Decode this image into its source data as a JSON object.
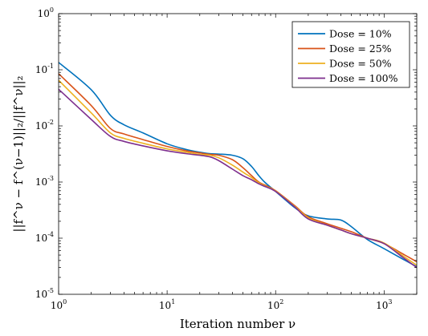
{
  "chart_data": {
    "type": "line",
    "xscale": "log",
    "yscale": "log",
    "xlim": [
      1,
      2000
    ],
    "ylim": [
      1e-05,
      1
    ],
    "xlabel": "Iteration number ν",
    "ylabel": "||f^ν − f^(ν−1)||₂/||f^ν||₂",
    "x_ticks": [
      {
        "value": 1,
        "base": "10",
        "exp": "0"
      },
      {
        "value": 10,
        "base": "10",
        "exp": "1"
      },
      {
        "value": 100,
        "base": "10",
        "exp": "2"
      },
      {
        "value": 1000,
        "base": "10",
        "exp": "3"
      }
    ],
    "y_ticks": [
      {
        "value": 1e-05,
        "base": "10",
        "exp": "-5"
      },
      {
        "value": 0.0001,
        "base": "10",
        "exp": "-4"
      },
      {
        "value": 0.001,
        "base": "10",
        "exp": "-3"
      },
      {
        "value": 0.01,
        "base": "10",
        "exp": "-2"
      },
      {
        "value": 0.1,
        "base": "10",
        "exp": "-1"
      },
      {
        "value": 1,
        "base": "10",
        "exp": "0"
      }
    ],
    "legend_position": "top-right",
    "grid": false,
    "series": [
      {
        "name": "Dose = 10%",
        "color": "#0072BD",
        "x": [
          1,
          2,
          3,
          4,
          6,
          10,
          15,
          20,
          25,
          30,
          40,
          50,
          60,
          70,
          80,
          100,
          150,
          200,
          300,
          400,
          500,
          700,
          1000,
          1500,
          2000
        ],
        "y": [
          0.135,
          0.044,
          0.0155,
          0.0105,
          0.0075,
          0.0048,
          0.0038,
          0.0034,
          0.0032,
          0.00315,
          0.003,
          0.0026,
          0.0019,
          0.0013,
          0.00098,
          0.00068,
          0.00035,
          0.00025,
          0.00022,
          0.00021,
          0.00016,
          9.5e-05,
          6.5e-05,
          4.2e-05,
          3.1e-05
        ]
      },
      {
        "name": "Dose = 25%",
        "color": "#D95319",
        "x": [
          1,
          2,
          3,
          4,
          6,
          10,
          15,
          20,
          25,
          30,
          40,
          50,
          60,
          70,
          80,
          100,
          150,
          200,
          300,
          400,
          500,
          700,
          1000,
          1500,
          2000
        ],
        "y": [
          0.085,
          0.023,
          0.009,
          0.0072,
          0.0057,
          0.0043,
          0.0036,
          0.0033,
          0.0031,
          0.003,
          0.0025,
          0.0018,
          0.0013,
          0.001,
          0.00088,
          0.0007,
          0.00038,
          0.00024,
          0.00018,
          0.00015,
          0.00013,
          0.0001,
          8e-05,
          5.2e-05,
          3.8e-05
        ]
      },
      {
        "name": "Dose = 50%",
        "color": "#EDB120",
        "x": [
          1,
          2,
          3,
          4,
          6,
          10,
          15,
          20,
          25,
          30,
          40,
          50,
          60,
          70,
          80,
          100,
          150,
          200,
          300,
          400,
          500,
          700,
          1000,
          1500,
          2000
        ],
        "y": [
          0.065,
          0.017,
          0.0075,
          0.006,
          0.0049,
          0.0039,
          0.0034,
          0.0031,
          0.003,
          0.0027,
          0.002,
          0.0015,
          0.0012,
          0.00097,
          0.00085,
          0.00069,
          0.00037,
          0.00023,
          0.00017,
          0.00014,
          0.00012,
          0.0001,
          8.2e-05,
          4.8e-05,
          3.3e-05
        ]
      },
      {
        "name": "Dose = 100%",
        "color": "#7E2F8E",
        "x": [
          1,
          2,
          3,
          4,
          6,
          10,
          15,
          20,
          25,
          30,
          40,
          50,
          60,
          70,
          80,
          100,
          150,
          200,
          300,
          400,
          500,
          700,
          1000,
          1500,
          2000
        ],
        "y": [
          0.045,
          0.013,
          0.0065,
          0.0053,
          0.0044,
          0.0036,
          0.0032,
          0.003,
          0.0028,
          0.0024,
          0.0017,
          0.0013,
          0.0011,
          0.00093,
          0.00083,
          0.00068,
          0.00036,
          0.00022,
          0.00017,
          0.00014,
          0.00012,
          0.0001,
          8e-05,
          4.5e-05,
          3e-05
        ]
      }
    ]
  }
}
